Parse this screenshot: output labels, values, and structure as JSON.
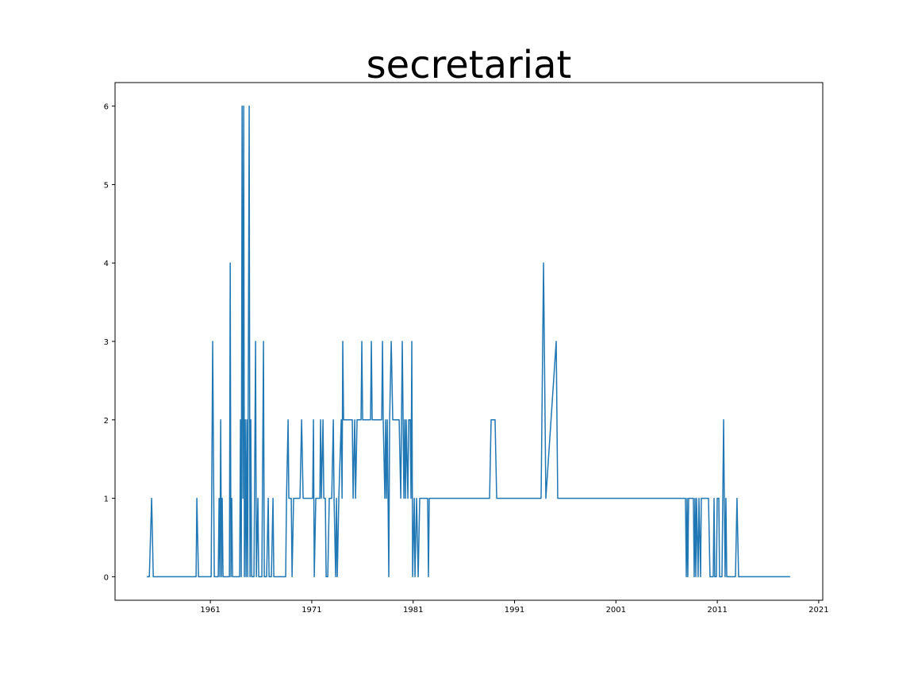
{
  "chart_data": {
    "type": "line",
    "title": "secretariat",
    "x": [
      1954.74,
      1954.98,
      1955.21,
      1955.37,
      1959.59,
      1959.67,
      1959.83,
      1961.08,
      1961.23,
      1961.39,
      1961.78,
      1961.86,
      1961.94,
      1962.02,
      1962.1,
      1962.17,
      1962.25,
      1962.88,
      1962.96,
      1963.03,
      1963.11,
      1963.19,
      1963.89,
      1963.97,
      1964.05,
      1964.13,
      1964.21,
      1964.29,
      1964.36,
      1964.44,
      1964.52,
      1964.6,
      1964.68,
      1964.83,
      1964.91,
      1964.99,
      1965.07,
      1965.3,
      1965.46,
      1965.54,
      1965.69,
      1965.77,
      1966.08,
      1966.24,
      1966.32,
      1966.55,
      1966.71,
      1966.79,
      1967.02,
      1967.18,
      1967.26,
      1968.43,
      1968.51,
      1968.67,
      1968.74,
      1968.98,
      1969.06,
      1969.21,
      1969.84,
      1970.0,
      1970.15,
      1971.09,
      1971.17,
      1971.25,
      1971.4,
      1971.8,
      1971.87,
      1971.95,
      1972.11,
      1972.19,
      1972.34,
      1972.42,
      1972.58,
      1972.73,
      1972.97,
      1973.13,
      1973.2,
      1973.36,
      1973.44,
      1973.52,
      1973.67,
      1973.91,
      1973.99,
      1974.06,
      1974.14,
      1975.0,
      1975.08,
      1975.24,
      1975.32,
      1975.47,
      1975.86,
      1975.94,
      1976.02,
      1976.8,
      1976.88,
      1976.96,
      1977.9,
      1977.98,
      1978.05,
      1978.21,
      1978.29,
      1978.37,
      1978.45,
      1978.6,
      1978.68,
      1978.84,
      1978.99,
      1979.62,
      1979.78,
      1979.93,
      1980.09,
      1980.17,
      1980.25,
      1980.32,
      1980.48,
      1980.56,
      1980.71,
      1980.79,
      1980.87,
      1980.95,
      1981.11,
      1981.18,
      1981.34,
      1981.5,
      1981.65,
      1982.43,
      1982.51,
      1982.59,
      1988.54,
      1988.69,
      1989.08,
      1989.24,
      1993.62,
      1993.86,
      1994.09,
      1995.11,
      1995.26,
      2007.86,
      2007.94,
      2008.02,
      2008.09,
      2008.17,
      2008.64,
      2008.72,
      2008.8,
      2008.88,
      2008.95,
      2009.11,
      2009.19,
      2009.35,
      2009.42,
      2010.13,
      2010.28,
      2010.6,
      2010.68,
      2010.75,
      2010.91,
      2010.99,
      2011.15,
      2011.22,
      2011.46,
      2011.62,
      2011.69,
      2011.77,
      2011.85,
      2011.93,
      2012.79,
      2012.94,
      2013.1,
      2018.18
    ],
    "series": [
      {
        "color": "#1f77b4",
        "values": [
          0,
          0,
          1,
          0,
          0,
          1,
          0,
          0,
          3,
          0,
          0,
          1,
          0,
          2,
          0,
          1,
          0,
          0,
          4,
          0,
          1,
          0,
          0,
          2,
          0,
          6,
          1,
          6,
          0,
          2,
          0,
          2,
          0,
          6,
          0,
          2,
          0,
          0,
          3,
          0,
          1,
          0,
          0,
          3,
          0,
          0,
          1,
          0,
          0,
          1,
          0,
          0,
          1,
          2,
          1,
          1,
          0,
          1,
          1,
          2,
          1,
          1,
          2,
          0,
          1,
          1,
          2,
          1,
          2,
          1,
          1,
          0,
          0,
          1,
          1,
          2,
          1,
          0,
          1,
          0,
          1,
          2,
          1,
          3,
          2,
          2,
          1,
          2,
          1,
          2,
          2,
          3,
          2,
          2,
          3,
          2,
          2,
          3,
          2,
          1,
          2,
          1,
          2,
          0,
          2,
          3,
          2,
          2,
          1,
          3,
          1,
          2,
          1,
          2,
          1,
          2,
          2,
          1,
          3,
          0,
          1,
          0,
          1,
          0,
          1,
          1,
          0,
          1,
          1,
          2,
          2,
          1,
          1,
          4,
          1,
          3,
          1,
          1,
          0,
          1,
          0,
          1,
          1,
          0,
          1,
          0,
          1,
          0,
          1,
          0,
          1,
          1,
          0,
          0,
          1,
          0,
          0,
          1,
          1,
          0,
          0,
          2,
          1,
          0,
          1,
          0,
          0,
          1,
          0,
          0
        ]
      }
    ],
    "xlim": [
      1951.6,
      2021.4
    ],
    "ylim": [
      -0.3,
      6.3
    ],
    "xticks": [
      1961,
      1971,
      1981,
      1991,
      2001,
      2011,
      2021
    ],
    "yticks": [
      0,
      1,
      2,
      3,
      4,
      5,
      6
    ]
  }
}
